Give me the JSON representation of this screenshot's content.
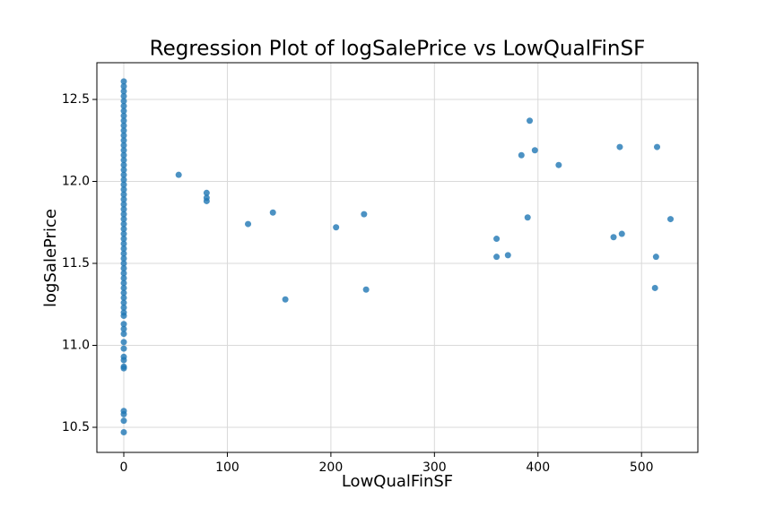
{
  "chart_data": {
    "type": "scatter",
    "title": "Regression Plot of logSalePrice vs LowQualFinSF",
    "x_label": "LowQualFinSF",
    "y_label": "logSalePrice",
    "color": "#1f77b4",
    "grid": true,
    "xlim": [
      -26,
      554.4
    ],
    "ylim": [
      10.347,
      12.724
    ],
    "xticks": [
      0,
      100,
      200,
      300,
      400,
      500
    ],
    "yticks": [
      10.5,
      {
        "value": 11.0,
        "label": "11.0"
      },
      11.5,
      {
        "value": 12.0,
        "label": "12.0"
      },
      12.5
    ],
    "x": [
      0,
      0,
      0,
      0,
      0,
      0,
      0,
      0,
      0,
      0,
      0,
      0,
      0,
      0,
      0,
      0,
      0,
      0,
      0,
      0,
      0,
      0,
      0,
      0,
      0,
      0,
      0,
      0,
      0,
      0,
      0,
      0,
      0,
      0,
      0,
      0,
      0,
      0,
      0,
      0,
      0,
      0,
      0,
      0,
      0,
      0,
      0,
      0,
      0,
      0,
      0,
      0,
      0,
      0,
      0,
      0,
      0,
      0,
      0,
      0,
      0,
      0,
      53,
      80,
      80,
      80,
      120,
      144,
      156,
      205,
      232,
      234,
      360,
      360,
      371,
      384,
      390,
      392,
      397,
      420,
      473,
      479,
      481,
      513,
      514,
      515,
      528
    ],
    "values": [
      10.47,
      10.54,
      10.58,
      10.6,
      10.86,
      10.87,
      10.91,
      10.93,
      10.98,
      11.02,
      11.07,
      11.1,
      11.13,
      11.18,
      11.2,
      11.23,
      11.26,
      11.29,
      11.32,
      11.35,
      11.38,
      11.41,
      11.44,
      11.47,
      11.5,
      11.53,
      11.56,
      11.59,
      11.62,
      11.65,
      11.68,
      11.71,
      11.74,
      11.77,
      11.8,
      11.83,
      11.86,
      11.89,
      11.92,
      11.95,
      11.98,
      12.01,
      12.04,
      12.07,
      12.1,
      12.13,
      12.16,
      12.19,
      12.22,
      12.25,
      12.28,
      12.31,
      12.34,
      12.37,
      12.4,
      12.43,
      12.46,
      12.49,
      12.52,
      12.55,
      12.58,
      12.61,
      12.04,
      11.93,
      11.9,
      11.88,
      11.74,
      11.81,
      11.28,
      11.72,
      11.8,
      11.34,
      11.65,
      11.54,
      11.55,
      12.16,
      11.78,
      12.37,
      12.19,
      12.1,
      11.66,
      12.21,
      11.68,
      11.35,
      11.54,
      12.21,
      11.77
    ]
  }
}
